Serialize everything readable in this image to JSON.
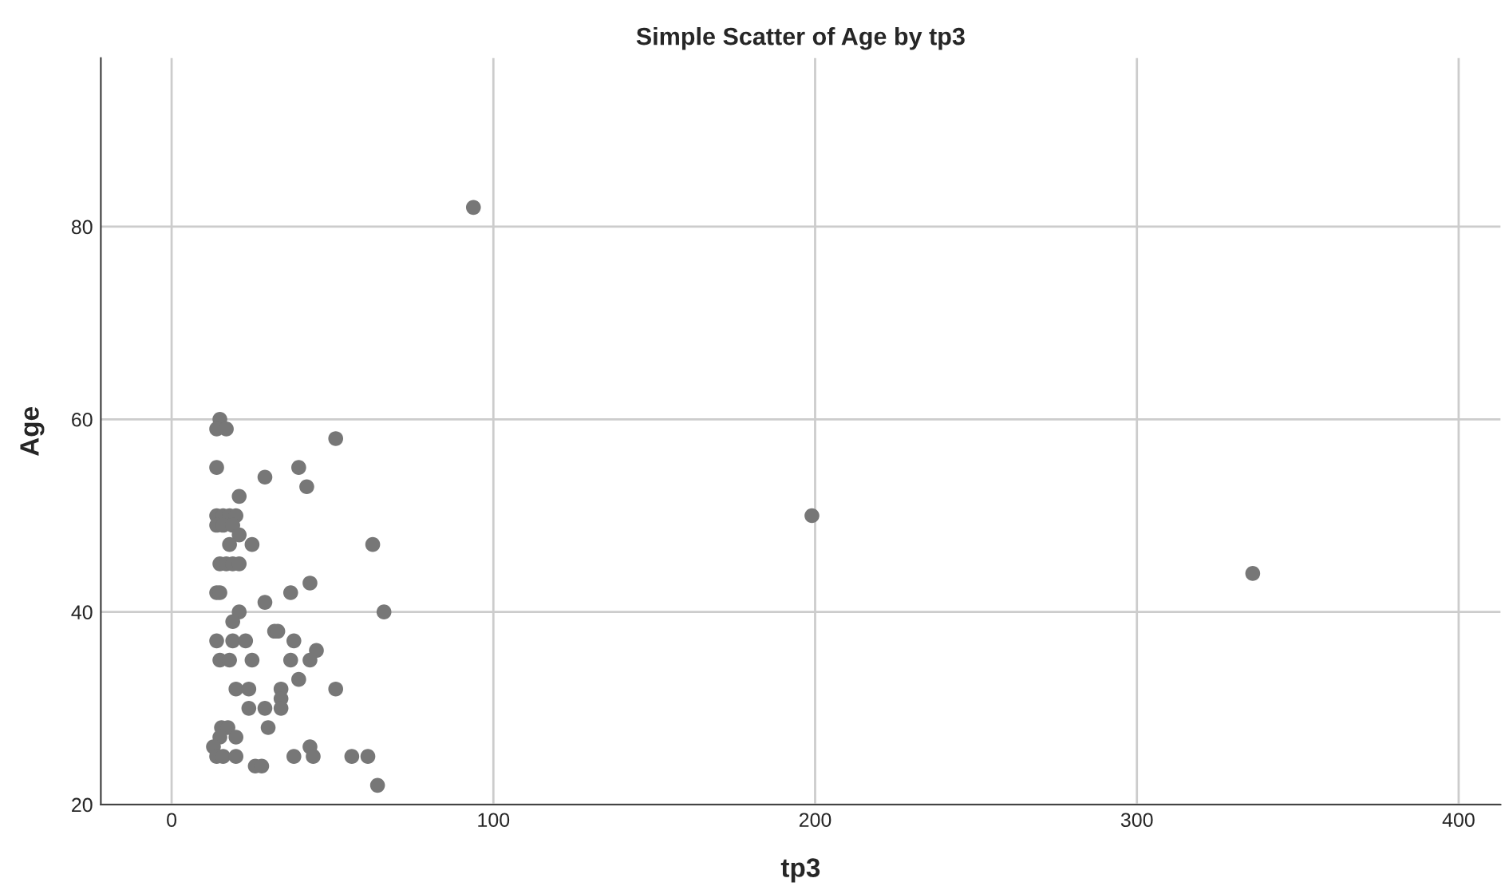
{
  "chart_data": {
    "type": "scatter",
    "title": "Simple Scatter of Age by tp3",
    "xlabel": "tp3",
    "ylabel": "Age",
    "xlim": [
      -22,
      413
    ],
    "ylim": [
      20,
      97.5
    ],
    "xticks": [
      0,
      100,
      200,
      300,
      400
    ],
    "yticks": [
      20,
      40,
      60,
      80
    ],
    "grid": true,
    "marker": "circle",
    "series": [
      {
        "color": "#777777",
        "x": [
          93.8,
          199,
          336,
          15,
          14,
          17,
          51,
          14,
          29,
          39.5,
          42,
          21,
          14,
          16,
          18,
          20,
          14,
          16,
          19,
          21,
          18,
          25,
          62.5,
          15,
          17,
          19,
          21,
          14,
          15,
          37,
          43,
          29,
          21,
          66,
          19,
          32,
          33,
          14,
          19,
          23,
          38,
          45,
          15,
          18,
          25,
          37,
          43,
          39.5,
          20,
          24,
          34,
          51,
          34,
          24,
          29,
          34,
          15.5,
          17.5,
          30,
          15,
          20,
          13,
          43,
          14,
          16,
          20,
          38,
          44,
          56,
          61,
          26,
          28,
          64
        ],
        "values": [
          82,
          50,
          44,
          60,
          59,
          59,
          58,
          55,
          54,
          55,
          53,
          52,
          50,
          50,
          50,
          50,
          49,
          49,
          49,
          48,
          47,
          47,
          47,
          45,
          45,
          45,
          45,
          42,
          42,
          42,
          43,
          41,
          40,
          40,
          39,
          38,
          38,
          37,
          37,
          37,
          37,
          36,
          35,
          35,
          35,
          35,
          35,
          33,
          32,
          32,
          32,
          32,
          31,
          30,
          30,
          30,
          28,
          28,
          28,
          27,
          27,
          26,
          26,
          25,
          25,
          25,
          25,
          25,
          25,
          25,
          24,
          24,
          22
        ]
      }
    ]
  }
}
